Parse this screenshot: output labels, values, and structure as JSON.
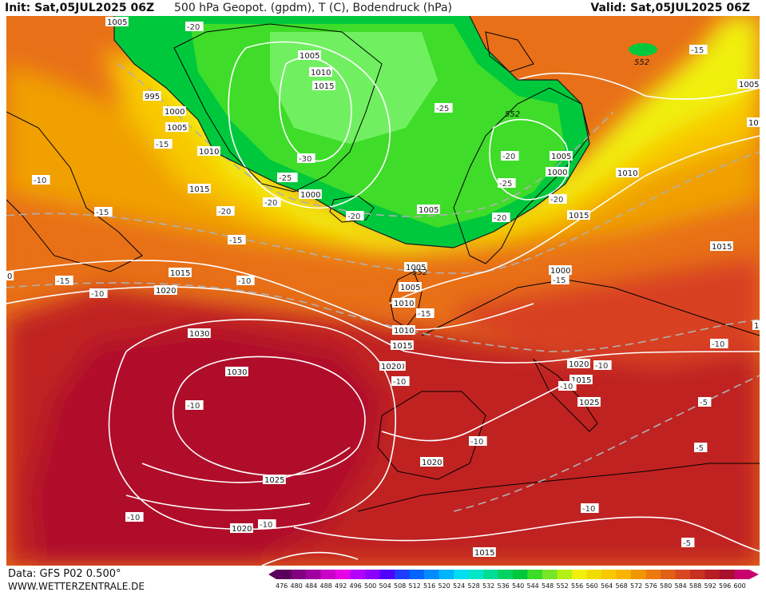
{
  "header": {
    "init": "Init: Sat,05JUL2025 06Z",
    "title": "500 hPa Geopot. (gpdm), T (C), Bodendruck (hPa)",
    "valid": "Valid: Sat,05JUL2025 06Z"
  },
  "footer": {
    "data_source": "Data: GFS P02 0.500°",
    "url": "WWW.WETTERZENTRALE.DE"
  },
  "colors": {
    "green_dark": "#00c83c",
    "green_mid": "#3fdc2a",
    "green_light": "#70f060",
    "yellow": "#f0f010",
    "yellow_orange": "#f8c800",
    "orange": "#f0a000",
    "orange_red": "#e87018",
    "red": "#d84020",
    "dark_red": "#c02020",
    "crimson": "#b0102c"
  },
  "legend": {
    "values": [
      "476",
      "480",
      "484",
      "488",
      "492",
      "496",
      "500",
      "504",
      "508",
      "512",
      "516",
      "520",
      "524",
      "528",
      "532",
      "536",
      "540",
      "544",
      "548",
      "552",
      "556",
      "560",
      "564",
      "568",
      "572",
      "576",
      "580",
      "584",
      "588",
      "592",
      "596",
      "600"
    ],
    "colors": [
      "#5a005a",
      "#800080",
      "#a000a0",
      "#c800c8",
      "#e600e6",
      "#b400ff",
      "#8c00ff",
      "#5000ff",
      "#1e3cff",
      "#0064ff",
      "#008cff",
      "#00b4ff",
      "#00dcf0",
      "#00e6c8",
      "#00dc96",
      "#00d264",
      "#00c83c",
      "#3cdc28",
      "#78e628",
      "#b4f014",
      "#f0f00a",
      "#f0dc00",
      "#f8c800",
      "#f8b400",
      "#f09600",
      "#ec7a10",
      "#e06018",
      "#d84820",
      "#c83020",
      "#b81c24",
      "#a8102c",
      "#c8006e"
    ]
  },
  "labels": {
    "isobars": [
      "1005",
      "995",
      "1000",
      "1005",
      "1010",
      "1015",
      "1005",
      "1010",
      "1015",
      "1000",
      "1005",
      "1005",
      "1000",
      "1005",
      "1010",
      "1010",
      "1015",
      "1020",
      "1005",
      "1015",
      "1010",
      "1015",
      "1000",
      "1005",
      "1010",
      "1015",
      "1020",
      "1020",
      "1015",
      "1025",
      "1030",
      "1030",
      "1025",
      "1020",
      "1020",
      "1015",
      "1015",
      "1020",
      "10",
      "0"
    ],
    "temps": [
      "-20",
      "-15",
      "-10",
      "-15",
      "-15",
      "-10",
      "-10",
      "-15",
      "-20",
      "-20",
      "-25",
      "-30",
      "-25",
      "-20",
      "-25",
      "-20",
      "-25",
      "-20",
      "-20",
      "-15",
      "-15",
      "-10",
      "-10",
      "-10",
      "-10",
      "-10",
      "-10",
      "-10",
      "-10",
      "-5",
      "-5",
      "-5",
      "-10",
      "-15"
    ],
    "geopot": [
      "552",
      "552",
      "552"
    ]
  }
}
